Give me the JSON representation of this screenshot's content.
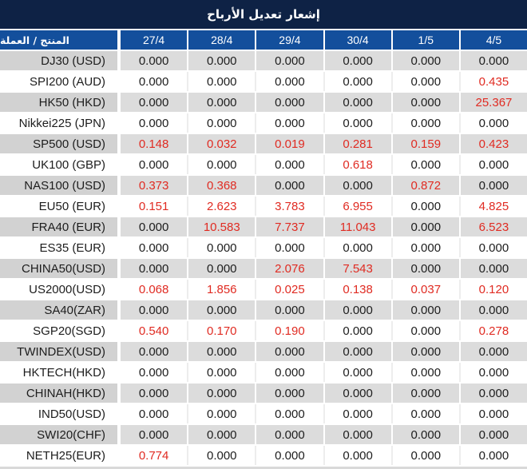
{
  "title": "إشعار تعديل الأرباح",
  "table": {
    "product_header": "المنتج / العملة",
    "date_headers": [
      "27/4",
      "28/4",
      "29/4",
      "30/4",
      "1/5",
      "4/5"
    ],
    "rows": [
      {
        "product": "DJ30 (USD)",
        "values": [
          "0.000",
          "0.000",
          "0.000",
          "0.000",
          "0.000",
          "0.000"
        ],
        "red": [
          0,
          0,
          0,
          0,
          0,
          0
        ]
      },
      {
        "product": "SPI200 (AUD)",
        "values": [
          "0.000",
          "0.000",
          "0.000",
          "0.000",
          "0.000",
          "0.435"
        ],
        "red": [
          0,
          0,
          0,
          0,
          0,
          1
        ]
      },
      {
        "product": "HK50 (HKD)",
        "values": [
          "0.000",
          "0.000",
          "0.000",
          "0.000",
          "0.000",
          "25.367"
        ],
        "red": [
          0,
          0,
          0,
          0,
          0,
          1
        ]
      },
      {
        "product": "Nikkei225 (JPN)",
        "values": [
          "0.000",
          "0.000",
          "0.000",
          "0.000",
          "0.000",
          "0.000"
        ],
        "red": [
          0,
          0,
          0,
          0,
          0,
          0
        ]
      },
      {
        "product": "SP500 (USD)",
        "values": [
          "0.148",
          "0.032",
          "0.019",
          "0.281",
          "0.159",
          "0.423"
        ],
        "red": [
          1,
          1,
          1,
          1,
          1,
          1
        ]
      },
      {
        "product": "UK100 (GBP)",
        "values": [
          "0.000",
          "0.000",
          "0.000",
          "0.618",
          "0.000",
          "0.000"
        ],
        "red": [
          0,
          0,
          0,
          1,
          0,
          0
        ]
      },
      {
        "product": "NAS100 (USD)",
        "values": [
          "0.373",
          "0.368",
          "0.000",
          "0.000",
          "0.872",
          "0.000"
        ],
        "red": [
          1,
          1,
          0,
          0,
          1,
          0
        ]
      },
      {
        "product": "EU50 (EUR)",
        "values": [
          "0.151",
          "2.623",
          "3.783",
          "6.955",
          "0.000",
          "4.825"
        ],
        "red": [
          1,
          1,
          1,
          1,
          0,
          1
        ]
      },
      {
        "product": "FRA40 (EUR)",
        "values": [
          "0.000",
          "10.583",
          "7.737",
          "11.043",
          "0.000",
          "6.523"
        ],
        "red": [
          0,
          1,
          1,
          1,
          0,
          1
        ]
      },
      {
        "product": "ES35 (EUR)",
        "values": [
          "0.000",
          "0.000",
          "0.000",
          "0.000",
          "0.000",
          "0.000"
        ],
        "red": [
          0,
          0,
          0,
          0,
          0,
          0
        ]
      },
      {
        "product": "CHINA50(USD)",
        "values": [
          "0.000",
          "0.000",
          "2.076",
          "7.543",
          "0.000",
          "0.000"
        ],
        "red": [
          0,
          0,
          1,
          1,
          0,
          0
        ]
      },
      {
        "product": "US2000(USD)",
        "values": [
          "0.068",
          "1.856",
          "0.025",
          "0.138",
          "0.037",
          "0.120"
        ],
        "red": [
          1,
          1,
          1,
          1,
          1,
          1
        ]
      },
      {
        "product": "SA40(ZAR)",
        "values": [
          "0.000",
          "0.000",
          "0.000",
          "0.000",
          "0.000",
          "0.000"
        ],
        "red": [
          0,
          0,
          0,
          0,
          0,
          0
        ]
      },
      {
        "product": "SGP20(SGD)",
        "values": [
          "0.540",
          "0.170",
          "0.190",
          "0.000",
          "0.000",
          "0.278"
        ],
        "red": [
          1,
          1,
          1,
          0,
          0,
          1
        ]
      },
      {
        "product": "TWINDEX(USD)",
        "values": [
          "0.000",
          "0.000",
          "0.000",
          "0.000",
          "0.000",
          "0.000"
        ],
        "red": [
          0,
          0,
          0,
          0,
          0,
          0
        ]
      },
      {
        "product": "HKTECH(HKD)",
        "values": [
          "0.000",
          "0.000",
          "0.000",
          "0.000",
          "0.000",
          "0.000"
        ],
        "red": [
          0,
          0,
          0,
          0,
          0,
          0
        ]
      },
      {
        "product": "CHINAH(HKD)",
        "values": [
          "0.000",
          "0.000",
          "0.000",
          "0.000",
          "0.000",
          "0.000"
        ],
        "red": [
          0,
          0,
          0,
          0,
          0,
          0
        ]
      },
      {
        "product": "IND50(USD)",
        "values": [
          "0.000",
          "0.000",
          "0.000",
          "0.000",
          "0.000",
          "0.000"
        ],
        "red": [
          0,
          0,
          0,
          0,
          0,
          0
        ]
      },
      {
        "product": "SWI20(CHF)",
        "values": [
          "0.000",
          "0.000",
          "0.000",
          "0.000",
          "0.000",
          "0.000"
        ],
        "red": [
          0,
          0,
          0,
          0,
          0,
          0
        ]
      },
      {
        "product": "NETH25(EUR)",
        "values": [
          "0.774",
          "0.000",
          "0.000",
          "0.000",
          "0.000",
          "0.000"
        ],
        "red": [
          1,
          0,
          0,
          0,
          0,
          0
        ]
      }
    ]
  },
  "colors": {
    "title_bar_bg": "#0e2245",
    "header_bg": "#134f9c",
    "row_gray_product_bg": "#d2d2d2",
    "row_gray_value_bg": "#dcdcdc",
    "row_white_bg": "#ffffff",
    "value_black": "#1d1d1d",
    "value_red": "#e02b22"
  }
}
